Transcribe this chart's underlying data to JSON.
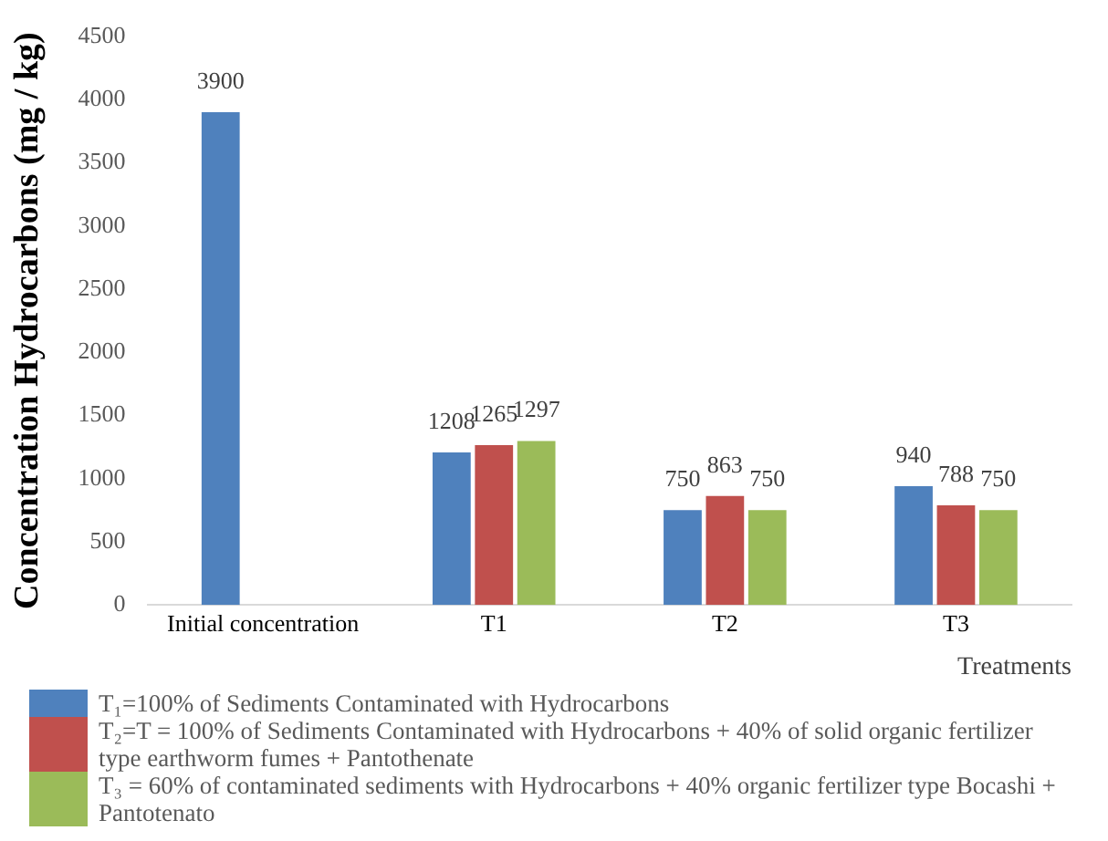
{
  "chart_data": {
    "type": "bar",
    "xlabel": "Treatments",
    "ylabel": "Concentration Hydrocarbons (mg / kg)",
    "categories": [
      "Initial concentration",
      "T1",
      "T2",
      "T3"
    ],
    "series": [
      {
        "name": "T₁=100% of Sediments Contaminated with Hydrocarbons",
        "color": "#4f81bd",
        "values": [
          3900,
          1208,
          750,
          940
        ]
      },
      {
        "name": "T₂=T = 100% of Sediments Contaminated with Hydrocarbons + 40% of solid organic fertilizer type earthworm fumes + Pantothenate",
        "color": "#c0504d",
        "values": [
          null,
          1265,
          863,
          788
        ]
      },
      {
        "name": "T₃ = 60% of contaminated sediments with Hydrocarbons + 40% organic fertilizer type Bocashi + Pantotenato",
        "color": "#9bbb59",
        "values": [
          null,
          1297,
          750,
          750
        ]
      }
    ],
    "ylim": [
      0,
      4500
    ],
    "yticks": [
      0,
      500,
      1000,
      1500,
      2000,
      2500,
      3000,
      3500,
      4000,
      4500
    ],
    "grid": false,
    "data_labels": true,
    "legend": "bottom"
  }
}
